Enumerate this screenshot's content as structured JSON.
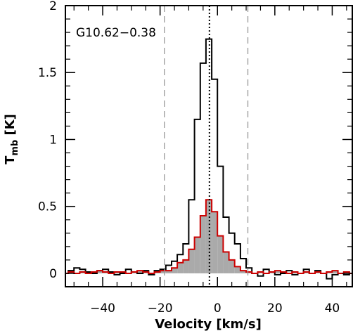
{
  "chart_data": {
    "type": "line",
    "annotation": "G10.62−0.38",
    "xlabel": "Velocity [km/s]",
    "ylabel_main": "T",
    "ylabel_sub": "mb",
    "ylabel_unit": " [K]",
    "xlim": [
      -53,
      47
    ],
    "ylim": [
      -0.1,
      2.0
    ],
    "x_ticks": [
      {
        "value": -40,
        "label": "−40"
      },
      {
        "value": -20,
        "label": "−20"
      },
      {
        "value": 0,
        "label": "0"
      },
      {
        "value": 20,
        "label": "20"
      },
      {
        "value": 40,
        "label": "40"
      }
    ],
    "y_ticks": [
      {
        "value": 0,
        "label": "0"
      },
      {
        "value": 0.5,
        "label": "0.5"
      },
      {
        "value": 1,
        "label": "1"
      },
      {
        "value": 1.5,
        "label": "1.5"
      },
      {
        "value": 2,
        "label": "2"
      }
    ],
    "grid": false,
    "vlines": [
      {
        "x": -18.5,
        "style": "dashed",
        "color": "#999999"
      },
      {
        "x": -2.8,
        "style": "dotted",
        "color": "#000000"
      },
      {
        "x": 10.6,
        "style": "dashed",
        "color": "#999999"
      }
    ],
    "series": [
      {
        "style": "step",
        "color": "#000000",
        "x": [
          -53,
          -51,
          -49,
          -47,
          -45,
          -43,
          -41,
          -39,
          -37,
          -35,
          -33,
          -31,
          -29,
          -27,
          -25,
          -23,
          -21,
          -19,
          -17,
          -15,
          -13,
          -11,
          -9,
          -7,
          -5,
          -3,
          -1,
          1,
          3,
          5,
          7,
          9,
          11,
          13,
          15,
          17,
          19,
          21,
          23,
          25,
          27,
          29,
          31,
          33,
          35,
          37,
          39,
          41,
          43,
          45,
          47
        ],
        "y": [
          0.0,
          0.02,
          0.04,
          0.03,
          0.01,
          0.0,
          0.02,
          0.03,
          0.01,
          -0.01,
          0.0,
          0.03,
          0.01,
          0.0,
          0.02,
          -0.01,
          0.02,
          0.03,
          0.06,
          0.09,
          0.14,
          0.22,
          0.55,
          1.15,
          1.57,
          1.75,
          1.45,
          0.8,
          0.42,
          0.3,
          0.22,
          0.11,
          0.04,
          0.0,
          -0.02,
          0.03,
          0.01,
          -0.01,
          0.0,
          0.02,
          -0.01,
          0.0,
          0.03,
          0.0,
          0.02,
          0.0,
          -0.04,
          -0.01,
          0.0,
          -0.01,
          0.0
        ]
      },
      {
        "style": "step-filled",
        "color": "#cc0000",
        "fill": "#aaaaaa",
        "x": [
          -53,
          -51,
          -49,
          -47,
          -45,
          -43,
          -41,
          -39,
          -37,
          -35,
          -33,
          -31,
          -29,
          -27,
          -25,
          -23,
          -21,
          -19,
          -17,
          -15,
          -13,
          -11,
          -9,
          -7,
          -5,
          -3,
          -1,
          1,
          3,
          5,
          7,
          9,
          11,
          13,
          15,
          17,
          19,
          21,
          23,
          25,
          27,
          29,
          31,
          33,
          35,
          37,
          39,
          41,
          43,
          45,
          47
        ],
        "y": [
          0.0,
          0.01,
          0.0,
          0.01,
          0.0,
          0.01,
          0.02,
          0.01,
          0.0,
          0.01,
          0.01,
          0.0,
          0.01,
          0.02,
          0.01,
          0.0,
          0.01,
          0.02,
          0.02,
          0.04,
          0.08,
          0.1,
          0.18,
          0.27,
          0.43,
          0.55,
          0.46,
          0.28,
          0.16,
          0.1,
          0.05,
          0.02,
          0.01,
          0.0,
          0.01,
          0.0,
          0.01,
          0.02,
          0.01,
          0.0,
          0.01,
          0.0,
          0.01,
          0.0,
          0.01,
          0.0,
          0.01,
          0.02,
          0.0,
          0.01,
          0.0
        ]
      }
    ]
  }
}
